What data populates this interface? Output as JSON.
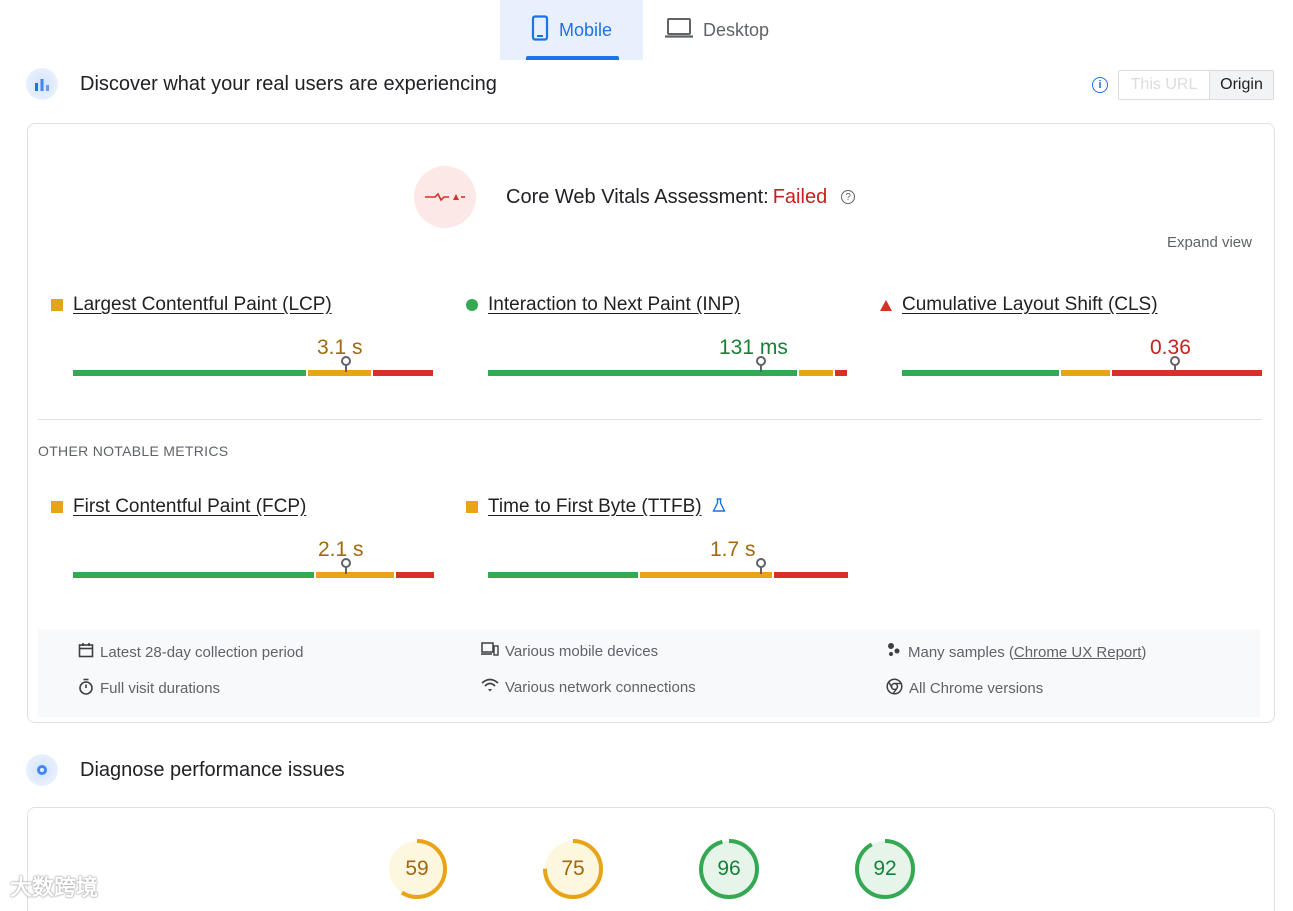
{
  "tabs": [
    {
      "label": "Mobile",
      "icon": "smartphone-icon",
      "active": true
    },
    {
      "label": "Desktop",
      "icon": "laptop-icon",
      "active": false
    }
  ],
  "field_section": {
    "title": "Discover what your real users are experiencing",
    "toggle": {
      "this_url": "This URL",
      "origin": "Origin",
      "selected": "Origin"
    }
  },
  "assessment": {
    "label": "Core Web Vitals Assessment: ",
    "status": "Failed",
    "expand": "Expand view"
  },
  "core_metrics": [
    {
      "name": "Largest Contentful Paint (LCP)",
      "value": "3.1 s",
      "rating": "needs-improvement",
      "distribution": {
        "good": 0.65,
        "ni": 0.18,
        "poor": 0.17
      },
      "marker": 0.75
    },
    {
      "name": "Interaction to Next Paint (INP)",
      "value": "131 ms",
      "rating": "good",
      "distribution": {
        "good": 0.86,
        "ni": 0.1,
        "poor": 0.04
      },
      "marker": 0.75
    },
    {
      "name": "Cumulative Layout Shift (CLS)",
      "value": "0.36",
      "rating": "poor",
      "distribution": {
        "good": 0.44,
        "ni": 0.14,
        "poor": 0.42
      },
      "marker": 0.75
    }
  ],
  "other_heading": "OTHER NOTABLE METRICS",
  "other_metrics": [
    {
      "name": "First Contentful Paint (FCP)",
      "value": "2.1 s",
      "rating": "needs-improvement",
      "distribution": {
        "good": 0.67,
        "ni": 0.22,
        "poor": 0.11
      },
      "marker": 0.75
    },
    {
      "name": "Time to First Byte (TTFB)",
      "value": "1.7 s",
      "rating": "needs-improvement",
      "experimental": true,
      "distribution": {
        "good": 0.42,
        "ni": 0.37,
        "poor": 0.21
      },
      "marker": 0.75
    }
  ],
  "footer_items": {
    "collection": "Latest 28-day collection period",
    "devices": "Various mobile devices",
    "samples_prefix": "Many samples (",
    "samples_link": "Chrome UX Report",
    "samples_suffix": ")",
    "durations": "Full visit durations",
    "network": "Various network connections",
    "chrome": "All Chrome versions"
  },
  "diagnose_section": {
    "title": "Diagnose performance issues"
  },
  "scores": [
    {
      "value": "59",
      "score": 0.59,
      "color": "#e8a316",
      "bg": "#fef7e0",
      "text": "#a5670c"
    },
    {
      "value": "75",
      "score": 0.75,
      "color": "#e8a316",
      "bg": "#fef7e0",
      "text": "#a5670c"
    },
    {
      "value": "96",
      "score": 0.96,
      "color": "#34a853",
      "bg": "#e6f4ea",
      "text": "#188038"
    },
    {
      "value": "92",
      "score": 0.92,
      "color": "#34a853",
      "bg": "#e6f4ea",
      "text": "#188038"
    }
  ],
  "watermark": "大数跨境",
  "colors": {
    "accent": "#1a73e8",
    "good": "#34a853",
    "average": "#e8a316",
    "poor": "#d93025"
  }
}
